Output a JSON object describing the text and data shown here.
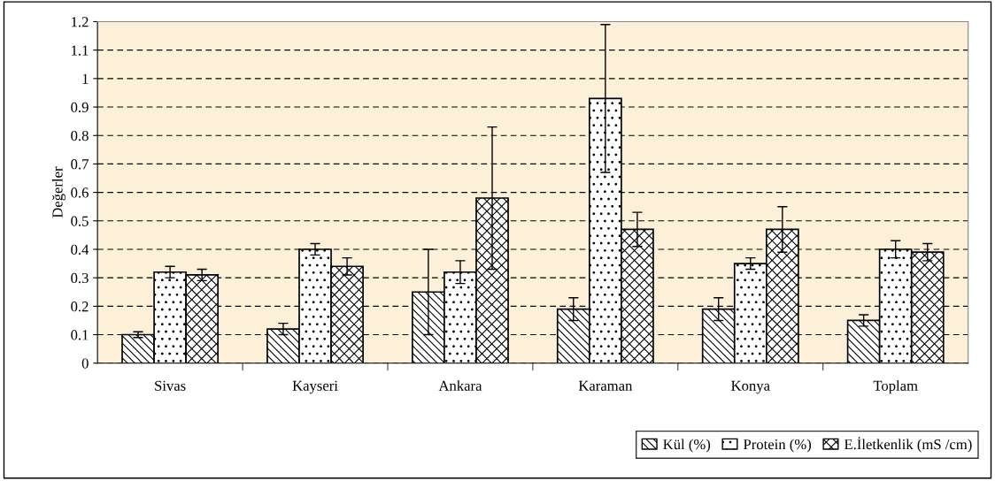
{
  "chart_data": {
    "type": "bar",
    "ylabel": "Değerler",
    "categories": [
      "Sivas",
      "Kayseri",
      "Ankara",
      "Karaman",
      "Konya",
      "Toplam"
    ],
    "series": [
      {
        "name": "Kül (%)",
        "color": "#000000",
        "values": [
          0.1,
          0.12,
          0.25,
          0.19,
          0.19,
          0.15
        ],
        "errors": [
          0.01,
          0.02,
          0.15,
          0.04,
          0.04,
          0.02
        ]
      },
      {
        "name": "Protein (%)",
        "color": "#000000",
        "values": [
          0.32,
          0.4,
          0.32,
          0.93,
          0.35,
          0.4
        ],
        "errors": [
          0.02,
          0.02,
          0.04,
          0.26,
          0.02,
          0.03
        ]
      },
      {
        "name": "E.İletkenlik (mS /cm)",
        "color": "#000000",
        "values": [
          0.31,
          0.34,
          0.58,
          0.47,
          0.47,
          0.39
        ],
        "errors": [
          0.02,
          0.03,
          0.25,
          0.06,
          0.08,
          0.03
        ]
      }
    ],
    "ylim": [
      0,
      1.2
    ],
    "yticks": [
      0,
      0.1,
      0.2,
      0.3,
      0.4,
      0.5,
      0.6,
      0.7,
      0.8,
      0.9,
      1,
      1.1,
      1.2
    ],
    "grid": "y",
    "legend": "bottom right"
  }
}
